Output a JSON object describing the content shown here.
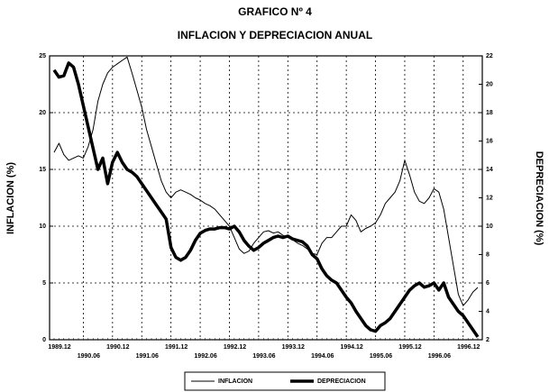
{
  "chart_data": {
    "type": "line",
    "title": "GRAFICO Nº  4",
    "subtitle": "INFLACION Y DEPRECIACION ANUAL",
    "y_label": "INFLACION (%)",
    "y2_label": "DEPRECIACION (%)",
    "categories": [
      "1989.12",
      null,
      null,
      null,
      null,
      null,
      "1990.06",
      null,
      null,
      null,
      null,
      null,
      "1990.12",
      null,
      null,
      null,
      null,
      null,
      "1991.06",
      null,
      null,
      null,
      null,
      null,
      "1991.12",
      null,
      null,
      null,
      null,
      null,
      "1992.06",
      null,
      null,
      null,
      null,
      null,
      "1992.12",
      null,
      null,
      null,
      null,
      null,
      "1993.06",
      null,
      null,
      null,
      null,
      null,
      "1993.12",
      null,
      null,
      null,
      null,
      null,
      "1994.06",
      null,
      null,
      null,
      null,
      null,
      "1994.12",
      null,
      null,
      null,
      null,
      null,
      "1995.06",
      null,
      null,
      null,
      null,
      null,
      "1995.12",
      null,
      null,
      null,
      null,
      null,
      "1996.06",
      null,
      null,
      null,
      null,
      null,
      "1996.12",
      null,
      null,
      null
    ],
    "series": [
      {
        "name": "INFLACION",
        "color": "#000000",
        "axis": "y",
        "width": 1,
        "values": [
          16.5,
          17.3,
          16.3,
          15.8,
          16.0,
          16.2,
          16.0,
          17.0,
          18.5,
          21.0,
          22.5,
          23.5,
          24.0,
          24.3,
          24.6,
          24.9,
          23.5,
          22.0,
          20.5,
          18.5,
          17.0,
          15.5,
          14.0,
          13.0,
          12.5,
          13.0,
          13.2,
          13.0,
          12.8,
          12.5,
          12.3,
          12.0,
          11.8,
          11.5,
          11.0,
          10.5,
          10.0,
          9.0,
          8.0,
          7.6,
          7.8,
          8.5,
          9.0,
          9.5,
          9.6,
          9.4,
          9.5,
          9.2,
          9.0,
          8.8,
          8.5,
          8.3,
          8.0,
          7.6,
          7.5,
          8.5,
          9.0,
          9.0,
          9.5,
          10.0,
          10.0,
          11.0,
          10.5,
          9.5,
          9.8,
          10.0,
          10.3,
          11.0,
          12.0,
          12.5,
          13.0,
          14.0,
          15.8,
          14.5,
          13.0,
          12.2,
          12.0,
          12.5,
          13.3,
          13.0,
          11.5,
          9.0,
          6.5,
          4.0,
          3.0,
          3.5,
          4.2,
          4.6
        ]
      },
      {
        "name": "DEPRECIACION",
        "color": "#000000",
        "axis": "y2",
        "width": 3.5,
        "values": [
          21.0,
          20.5,
          20.6,
          21.5,
          21.2,
          20.0,
          18.5,
          17.0,
          15.5,
          14.0,
          14.8,
          13.0,
          14.5,
          15.2,
          14.5,
          14.0,
          13.8,
          13.5,
          13.0,
          12.5,
          12.0,
          11.5,
          11.0,
          10.5,
          8.5,
          7.8,
          7.6,
          7.8,
          8.3,
          9.0,
          9.5,
          9.7,
          9.8,
          9.8,
          9.9,
          9.9,
          9.8,
          10.0,
          9.6,
          9.0,
          8.6,
          8.3,
          8.5,
          8.8,
          9.0,
          9.2,
          9.3,
          9.2,
          9.3,
          9.1,
          9.0,
          8.9,
          8.6,
          8.0,
          7.7,
          7.0,
          6.5,
          6.2,
          6.0,
          5.5,
          5.0,
          4.6,
          4.0,
          3.5,
          3.0,
          2.7,
          2.6,
          3.0,
          3.2,
          3.5,
          4.0,
          4.5,
          5.0,
          5.5,
          5.8,
          6.0,
          5.7,
          5.8,
          6.0,
          5.5,
          6.0,
          5.0,
          4.5,
          4.0,
          3.7,
          3.2,
          2.7,
          2.2
        ]
      }
    ],
    "ylim": [
      0,
      25
    ],
    "yticks": [
      0,
      5,
      10,
      15,
      20,
      25
    ],
    "y2lim": [
      2,
      22
    ],
    "y2ticks": [
      2,
      4,
      6,
      8,
      10,
      12,
      14,
      16,
      18,
      20,
      22
    ],
    "grid": true,
    "legend": "bottom"
  }
}
